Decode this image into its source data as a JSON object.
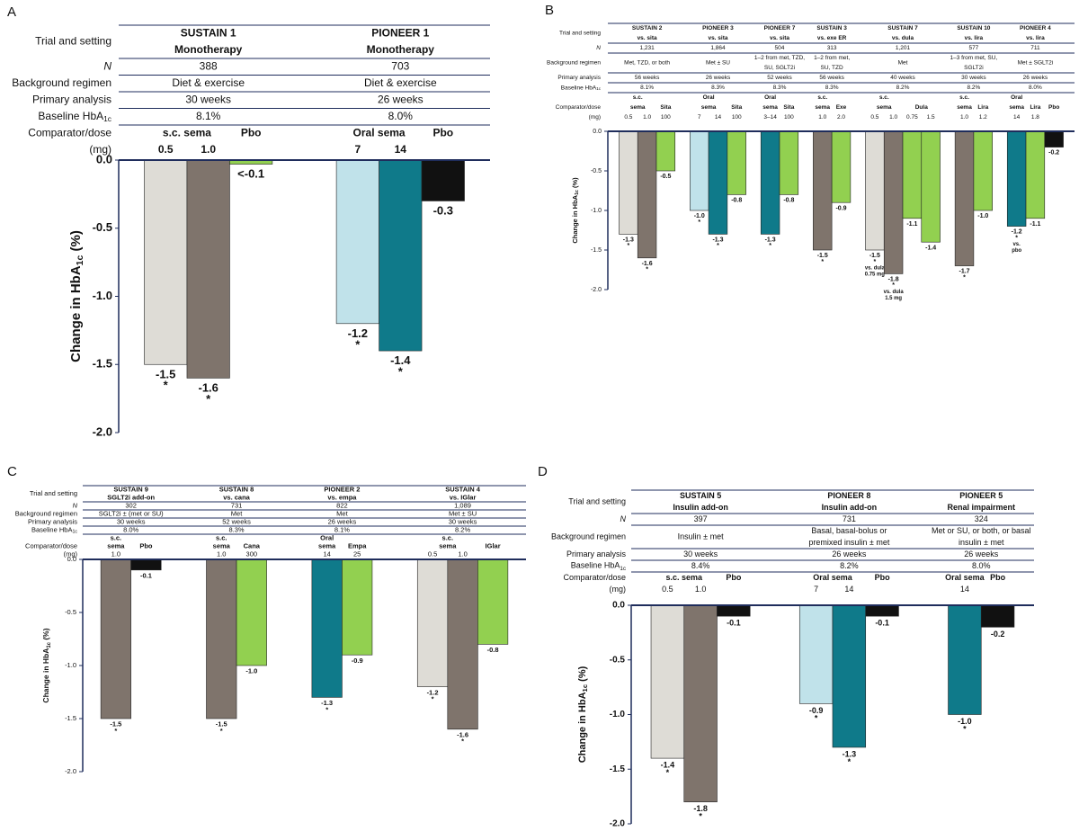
{
  "chart_data": [
    {
      "type": "bar",
      "panel_label": "A",
      "ylabel": [
        "Change in HbA",
        "1c",
        " (%)"
      ],
      "ylim": [
        -2,
        0
      ],
      "yticks": [
        {
          "value": 0,
          "label": "0.0"
        },
        -0.5,
        {
          "value": -1,
          "label": "-1.0"
        },
        -1.5,
        {
          "value": -2,
          "label": "-2.0"
        }
      ],
      "row_labels": {
        "trial": "Trial and setting",
        "n": "N",
        "background": "Background regimen",
        "primary": "Primary analysis",
        "baseline": [
          "Baseline HbA",
          "1c"
        ],
        "comparator": [
          "Comparator/dose",
          "(mg)"
        ]
      },
      "trials": [
        {
          "name": "SUSTAIN 1",
          "setting": "Monotherapy",
          "n": "388",
          "background": "Diet & exercise",
          "primary": "30 weeks",
          "baseline": "8.1%",
          "comparators": [
            {
              "label": "s.c. sema",
              "doses": [
                "0.5",
                "1.0"
              ]
            },
            {
              "label": "Pbo"
            }
          ],
          "bars": [
            {
              "value": -1.5,
              "value_label": "-1.5",
              "color": "#dedcd6",
              "star": "*"
            },
            {
              "value": -1.6,
              "value_label": "-1.6",
              "color": "#7f746c",
              "star": "*"
            },
            {
              "value": -0.03,
              "value_label": "<-0.1",
              "color": "#92d050"
            }
          ]
        },
        {
          "name": "PIONEER 1",
          "setting": "Monotherapy",
          "n": "703",
          "background": "Diet & exercise",
          "primary": "26 weeks",
          "baseline": "8.0%",
          "comparators": [
            {
              "label": "Oral sema",
              "doses": [
                "7",
                "14"
              ]
            },
            {
              "label": "Pbo"
            }
          ],
          "bars": [
            {
              "value": -1.2,
              "value_label": "-1.2",
              "color": "#c0e2ea",
              "star": "*"
            },
            {
              "value": -1.4,
              "value_label": "-1.4",
              "color": "#0f7a8a",
              "star": "*"
            },
            {
              "value": -0.3,
              "value_label": "-0.3",
              "color": "#111111"
            }
          ]
        }
      ]
    },
    {
      "type": "bar",
      "panel_label": "B",
      "ylabel": [
        "Change in HbA",
        "1c",
        " (%)"
      ],
      "ylim": [
        -2,
        0
      ],
      "yticks": [
        {
          "value": 0,
          "label": "0.0"
        },
        -0.5,
        {
          "value": -1,
          "label": "-1.0"
        },
        -1.5,
        {
          "value": -2,
          "label": "-2.0"
        }
      ],
      "row_labels": {
        "trial": "Trial and setting",
        "n": "N",
        "background": "Background regimen",
        "primary": "Primary analysis",
        "baseline": [
          "Baseline HbA",
          "1c"
        ],
        "comparator": [
          "Comparator/dose",
          "(mg)"
        ]
      },
      "trials": [
        {
          "name": "SUSTAIN 2",
          "setting": "vs. sita",
          "n": "1,231",
          "background": "Met, TZD, or both",
          "primary": "56 weeks",
          "baseline": "8.1%",
          "comparators": [
            {
              "label": [
                "s.c.",
                "sema"
              ],
              "doses": [
                "0.5",
                "1.0"
              ]
            },
            {
              "label": "Sita",
              "doses": [
                "100"
              ]
            }
          ],
          "bars": [
            {
              "value": -1.3,
              "value_label": "-1.3",
              "color": "#dedcd6",
              "star": "*"
            },
            {
              "value": -1.6,
              "value_label": "-1.6",
              "color": "#7f746c",
              "star": "*"
            },
            {
              "value": -0.5,
              "value_label": "-0.5",
              "color": "#92d050"
            }
          ]
        },
        {
          "name": "PIONEER 3",
          "setting": "vs. sita",
          "n": "1,864",
          "background": "Met ± SU",
          "primary": "26 weeks",
          "baseline": "8.3%",
          "comparators": [
            {
              "label": [
                "Oral",
                "sema"
              ],
              "doses": [
                "7",
                "14"
              ]
            },
            {
              "label": "Sita",
              "doses": [
                "100"
              ]
            }
          ],
          "bars": [
            {
              "value": -1.0,
              "value_label": "-1.0",
              "color": "#c0e2ea",
              "star": "*"
            },
            {
              "value": -1.3,
              "value_label": "-1.3",
              "color": "#0f7a8a",
              "star": "*"
            },
            {
              "value": -0.8,
              "value_label": "-0.8",
              "color": "#92d050"
            }
          ]
        },
        {
          "name": "PIONEER 7",
          "setting": "vs. sita",
          "n": "504",
          "background": [
            "1–2 from met, TZD,",
            "SU, SGLT2i"
          ],
          "primary": "52 weeks",
          "baseline": "8.3%",
          "comparators": [
            {
              "label": [
                "Oral",
                "sema"
              ],
              "doses": [
                "3–14"
              ]
            },
            {
              "label": "Sita",
              "doses": [
                "100"
              ]
            }
          ],
          "bars": [
            {
              "value": -1.3,
              "value_label": "-1.3",
              "color": "#0f7a8a",
              "star": "*"
            },
            {
              "value": -0.8,
              "value_label": "-0.8",
              "color": "#92d050"
            }
          ]
        },
        {
          "name": "SUSTAIN 3",
          "setting": "vs. exe ER",
          "n": "313",
          "background": [
            "1–2 from met,",
            "SU, TZD"
          ],
          "primary": "56 weeks",
          "baseline": "8.3%",
          "comparators": [
            {
              "label": [
                "s.c.",
                "sema"
              ],
              "doses": [
                "1.0"
              ]
            },
            {
              "label": "Exe",
              "doses": [
                "2.0"
              ]
            }
          ],
          "bars": [
            {
              "value": -1.5,
              "value_label": "-1.5",
              "color": "#7f746c",
              "star": "*"
            },
            {
              "value": -0.9,
              "value_label": "-0.9",
              "color": "#92d050"
            }
          ]
        },
        {
          "name": "SUSTAIN 7",
          "setting": "vs. dula",
          "n": "1,201",
          "background": "Met",
          "primary": "40 weeks",
          "baseline": "8.2%",
          "comparators": [
            {
              "label": [
                "s.c.",
                "sema"
              ],
              "doses": [
                "0.5",
                "1.0"
              ]
            },
            {
              "label": "Dula",
              "doses": [
                "0.75",
                "1.5"
              ]
            }
          ],
          "bars": [
            {
              "value": -1.5,
              "value_label": "-1.5",
              "color": "#dedcd6",
              "star": "*",
              "note": [
                "vs. dula",
                "0.75 mg"
              ]
            },
            {
              "value": -1.8,
              "value_label": "-1.8",
              "color": "#7f746c",
              "star": "*",
              "note": [
                "vs. dula",
                "1.5 mg"
              ]
            },
            {
              "value": -1.1,
              "value_label": "-1.1",
              "color": "#92d050"
            },
            {
              "value": -1.4,
              "value_label": "-1.4",
              "color": "#92d050"
            }
          ]
        },
        {
          "name": "SUSTAIN 10",
          "setting": "vs. lira",
          "n": "577",
          "background": [
            "1–3 from met, SU,",
            "SGLT2i"
          ],
          "primary": "30 weeks",
          "baseline": "8.2%",
          "comparators": [
            {
              "label": [
                "s.c.",
                "sema"
              ],
              "doses": [
                "1.0"
              ]
            },
            {
              "label": "Lira",
              "doses": [
                "1.2"
              ]
            }
          ],
          "bars": [
            {
              "value": -1.7,
              "value_label": "-1.7",
              "color": "#7f746c",
              "star": "*"
            },
            {
              "value": -1.0,
              "value_label": "-1.0",
              "color": "#92d050"
            }
          ]
        },
        {
          "name": "PIONEER 4",
          "setting": "vs. lira",
          "n": "711",
          "background": "Met ± SGLT2i",
          "primary": "26 weeks",
          "baseline": "8.0%",
          "comparators": [
            {
              "label": [
                "Oral",
                "sema"
              ],
              "doses": [
                "14"
              ]
            },
            {
              "label": "Lira",
              "doses": [
                "1.8"
              ]
            },
            {
              "label": "Pbo"
            }
          ],
          "bars": [
            {
              "value": -1.2,
              "value_label": "-1.2",
              "color": "#0f7a8a",
              "star": "*",
              "note": [
                "vs.",
                "pbo"
              ]
            },
            {
              "value": -1.1,
              "value_label": "-1.1",
              "color": "#92d050"
            },
            {
              "value": -0.2,
              "value_label": "-0.2",
              "color": "#111111"
            }
          ]
        }
      ]
    },
    {
      "type": "bar",
      "panel_label": "C",
      "ylabel": [
        "Change in HbA",
        "1c",
        " (%)"
      ],
      "ylim": [
        -2,
        0
      ],
      "yticks": [
        {
          "value": 0,
          "label": "0.0"
        },
        -0.5,
        {
          "value": -1,
          "label": "-1.0"
        },
        -1.5,
        {
          "value": -2,
          "label": "-2.0"
        }
      ],
      "row_labels": {
        "trial": "Trial and setting",
        "n": "N",
        "background": "Background regimen",
        "primary": "Primary analysis",
        "baseline": [
          "Baseline HbA",
          "1c"
        ],
        "comparator": [
          "Comparator/dose",
          "(mg)"
        ]
      },
      "trials": [
        {
          "name": "SUSTAIN 9",
          "setting": "SGLT2i add-on",
          "n": "302",
          "background": "SGLT2i ± (met or SU)",
          "primary": "30 weeks",
          "baseline": "8.0%",
          "comparators": [
            {
              "label": [
                "s.c.",
                "sema"
              ],
              "doses": [
                "1.0"
              ]
            },
            {
              "label": "Pbo"
            }
          ],
          "bars": [
            {
              "value": -1.5,
              "value_label": "-1.5",
              "color": "#7f746c",
              "star": "*"
            },
            {
              "value": -0.1,
              "value_label": "-0.1",
              "color": "#111111"
            }
          ]
        },
        {
          "name": "SUSTAIN 8",
          "setting": "vs. cana",
          "n": "731",
          "background": "Met",
          "primary": "52 weeks",
          "baseline": "8.3%",
          "comparators": [
            {
              "label": [
                "s.c.",
                "sema"
              ],
              "doses": [
                "1.0"
              ]
            },
            {
              "label": "Cana",
              "doses": [
                "300"
              ]
            }
          ],
          "bars": [
            {
              "value": -1.5,
              "value_label": "-1.5",
              "color": "#7f746c",
              "star": "*"
            },
            {
              "value": -1.0,
              "value_label": "-1.0",
              "color": "#92d050"
            }
          ]
        },
        {
          "name": "PIONEER 2",
          "setting": "vs. empa",
          "n": "822",
          "background": "Met",
          "primary": "26 weeks",
          "baseline": "8.1%",
          "comparators": [
            {
              "label": [
                "Oral",
                "sema"
              ],
              "doses": [
                "14"
              ]
            },
            {
              "label": "Empa",
              "doses": [
                "25"
              ]
            }
          ],
          "bars": [
            {
              "value": -1.3,
              "value_label": "-1.3",
              "color": "#0f7a8a",
              "star": "*"
            },
            {
              "value": -0.9,
              "value_label": "-0.9",
              "color": "#92d050"
            }
          ]
        },
        {
          "name": "SUSTAIN 4",
          "setting": "vs. IGlar",
          "n": "1,089",
          "background": "Met ± SU",
          "primary": "30 weeks",
          "baseline": "8.2%",
          "comparators": [
            {
              "label": [
                "s.c.",
                "sema"
              ],
              "doses": [
                "0.5",
                "1.0"
              ]
            },
            {
              "label": "IGlar"
            }
          ],
          "bars": [
            {
              "value": -1.2,
              "value_label": "-1.2",
              "color": "#dedcd6",
              "star": "*"
            },
            {
              "value": -1.6,
              "value_label": "-1.6",
              "color": "#7f746c",
              "star": "*"
            },
            {
              "value": -0.8,
              "value_label": "-0.8",
              "color": "#92d050"
            }
          ]
        }
      ]
    },
    {
      "type": "bar",
      "panel_label": "D",
      "ylabel": [
        "Change in HbA",
        "1c",
        " (%)"
      ],
      "ylim": [
        -2,
        0
      ],
      "yticks": [
        {
          "value": 0,
          "label": "0.0"
        },
        -0.5,
        {
          "value": -1,
          "label": "-1.0"
        },
        -1.5,
        {
          "value": -2,
          "label": "-2.0"
        }
      ],
      "row_labels": {
        "trial": "Trial and setting",
        "n": "N",
        "background": "Background regimen",
        "primary": "Primary analysis",
        "baseline": [
          "Baseline HbA",
          "1c"
        ],
        "comparator": [
          "Comparator/dose",
          "(mg)"
        ]
      },
      "trials": [
        {
          "name": "SUSTAIN 5",
          "setting": "Insulin add-on",
          "n": "397",
          "background": "Insulin ± met",
          "primary": "30 weeks",
          "baseline": "8.4%",
          "comparators": [
            {
              "label": "s.c. sema",
              "doses": [
                "0.5",
                "1.0"
              ]
            },
            {
              "label": "Pbo"
            }
          ],
          "bars": [
            {
              "value": -1.4,
              "value_label": "-1.4",
              "color": "#dedcd6",
              "star": "*"
            },
            {
              "value": -1.8,
              "value_label": "-1.8",
              "color": "#7f746c",
              "star": "*"
            },
            {
              "value": -0.1,
              "value_label": "-0.1",
              "color": "#111111"
            }
          ]
        },
        {
          "name": "PIONEER 8",
          "setting": "Insulin add-on",
          "n": "731",
          "background": [
            "Basal, basal-bolus or",
            "premixed insulin ± met"
          ],
          "primary": "26 weeks",
          "baseline": "8.2%",
          "comparators": [
            {
              "label": "Oral sema",
              "doses": [
                "7",
                "14"
              ]
            },
            {
              "label": "Pbo"
            }
          ],
          "bars": [
            {
              "value": -0.9,
              "value_label": "-0.9",
              "color": "#c0e2ea",
              "star": "*"
            },
            {
              "value": -1.3,
              "value_label": "-1.3",
              "color": "#0f7a8a",
              "star": "*"
            },
            {
              "value": -0.1,
              "value_label": "-0.1",
              "color": "#111111"
            }
          ]
        },
        {
          "name": "PIONEER 5",
          "setting": "Renal impairment",
          "n": "324",
          "background": [
            "Met or SU, or both, or basal",
            "insulin ± met"
          ],
          "primary": "26 weeks",
          "baseline": "8.0%",
          "comparators": [
            {
              "label": "Oral sema",
              "doses": [
                "14"
              ]
            },
            {
              "label": "Pbo"
            }
          ],
          "bars": [
            {
              "value": -1.0,
              "value_label": "-1.0",
              "color": "#0f7a8a",
              "star": "*"
            },
            {
              "value": -0.2,
              "value_label": "-0.2",
              "color": "#111111"
            }
          ]
        }
      ]
    }
  ]
}
